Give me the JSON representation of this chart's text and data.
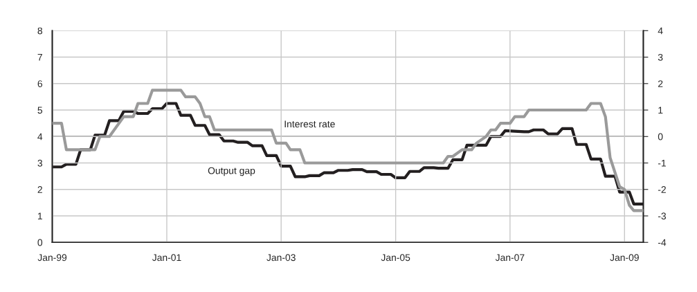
{
  "chart_data": {
    "type": "line",
    "xlim": [
      "1999-01",
      "2009-05"
    ],
    "xticks": [
      {
        "value": "1999-01",
        "label": "Jan-99"
      },
      {
        "value": "2001-01",
        "label": "Jan-01"
      },
      {
        "value": "2003-01",
        "label": "Jan-03"
      },
      {
        "value": "2005-01",
        "label": "Jan-05"
      },
      {
        "value": "2007-01",
        "label": "Jan-07"
      },
      {
        "value": "2009-01",
        "label": "Jan-09"
      }
    ],
    "ylim": [
      0,
      8
    ],
    "yticks": [
      0,
      1,
      2,
      3,
      4,
      5,
      6,
      7,
      8
    ],
    "y2lim": [
      -4,
      4
    ],
    "y2ticks": [
      -4,
      -3,
      -2,
      -1,
      0,
      1,
      2,
      3,
      4
    ],
    "grid": true,
    "legend": false,
    "ref_lines": [
      {
        "axis": "y2",
        "value": 0,
        "color": "#333333"
      }
    ],
    "series": [
      {
        "name": "Interest rate",
        "color": "#9a9a9a",
        "x": [
          "1999-01",
          "1999-03",
          "1999-04",
          "1999-10",
          "1999-11",
          "2000-01",
          "2000-04",
          "2000-06",
          "2000-07",
          "2000-09",
          "2000-10",
          "2001-04",
          "2001-05",
          "2001-07",
          "2001-08",
          "2001-09",
          "2001-10",
          "2001-11",
          "2002-11",
          "2002-12",
          "2003-02",
          "2003-03",
          "2003-05",
          "2003-06",
          "2005-11",
          "2005-12",
          "2006-01",
          "2006-03",
          "2006-05",
          "2006-06",
          "2006-08",
          "2006-09",
          "2006-10",
          "2006-11",
          "2007-01",
          "2007-02",
          "2007-04",
          "2007-05",
          "2008-05",
          "2008-06",
          "2008-08",
          "2008-09",
          "2008-10",
          "2008-12",
          "2009-01",
          "2009-02",
          "2009-03",
          "2009-05"
        ],
        "values": [
          4.5,
          4.5,
          3.5,
          3.5,
          4.0,
          4.0,
          4.75,
          4.75,
          5.25,
          5.25,
          5.75,
          5.75,
          5.5,
          5.5,
          5.25,
          4.75,
          4.75,
          4.25,
          4.25,
          3.75,
          3.75,
          3.5,
          3.5,
          3.0,
          3.0,
          3.25,
          3.25,
          3.5,
          3.5,
          3.75,
          4.0,
          4.25,
          4.25,
          4.5,
          4.5,
          4.75,
          4.75,
          5.0,
          5.0,
          5.25,
          5.25,
          4.75,
          3.2,
          2.1,
          2.0,
          1.4,
          1.2,
          1.2
        ]
      },
      {
        "name": "Output gap",
        "color": "#231f20",
        "axis": "y2",
        "x": [
          "1999-01",
          "1999-03",
          "1999-04",
          "1999-06",
          "1999-07",
          "1999-09",
          "1999-10",
          "1999-12",
          "2000-01",
          "2000-03",
          "2000-04",
          "2000-06",
          "2000-07",
          "2000-09",
          "2000-10",
          "2000-12",
          "2001-01",
          "2001-03",
          "2001-04",
          "2001-06",
          "2001-07",
          "2001-09",
          "2001-10",
          "2001-12",
          "2002-01",
          "2002-03",
          "2002-04",
          "2002-06",
          "2002-07",
          "2002-09",
          "2002-10",
          "2002-12",
          "2003-01",
          "2003-03",
          "2003-04",
          "2003-06",
          "2003-07",
          "2003-09",
          "2003-10",
          "2003-12",
          "2004-01",
          "2004-03",
          "2004-04",
          "2004-06",
          "2004-07",
          "2004-09",
          "2004-10",
          "2004-12",
          "2005-01",
          "2005-03",
          "2005-04",
          "2005-06",
          "2005-07",
          "2005-09",
          "2005-10",
          "2005-12",
          "2006-01",
          "2006-03",
          "2006-04",
          "2006-08",
          "2006-09",
          "2006-11",
          "2006-12",
          "2007-04",
          "2007-05",
          "2007-06",
          "2007-08",
          "2007-09",
          "2007-11",
          "2007-12",
          "2008-02",
          "2008-03",
          "2008-05",
          "2008-06",
          "2008-08",
          "2008-09",
          "2008-11",
          "2008-12",
          "2009-02",
          "2009-03",
          "2009-05"
        ],
        "values": [
          -1.15,
          -1.15,
          -1.05,
          -1.05,
          -0.5,
          -0.5,
          0.05,
          0.05,
          0.6,
          0.6,
          0.95,
          0.95,
          0.87,
          0.87,
          1.05,
          1.05,
          1.25,
          1.25,
          0.8,
          0.8,
          0.42,
          0.42,
          0.07,
          0.07,
          -0.17,
          -0.17,
          -0.22,
          -0.22,
          -0.35,
          -0.35,
          -0.72,
          -0.72,
          -1.12,
          -1.12,
          -1.52,
          -1.52,
          -1.48,
          -1.48,
          -1.37,
          -1.37,
          -1.28,
          -1.28,
          -1.25,
          -1.25,
          -1.33,
          -1.33,
          -1.43,
          -1.43,
          -1.56,
          -1.56,
          -1.32,
          -1.32,
          -1.18,
          -1.18,
          -1.2,
          -1.2,
          -0.88,
          -0.88,
          -0.33,
          -0.33,
          0.0,
          0.0,
          0.22,
          0.18,
          0.18,
          0.25,
          0.25,
          0.1,
          0.1,
          0.3,
          0.3,
          -0.3,
          -0.3,
          -0.85,
          -0.85,
          -1.5,
          -1.5,
          -2.1,
          -2.1,
          -2.55,
          -2.55
        ]
      }
    ]
  }
}
